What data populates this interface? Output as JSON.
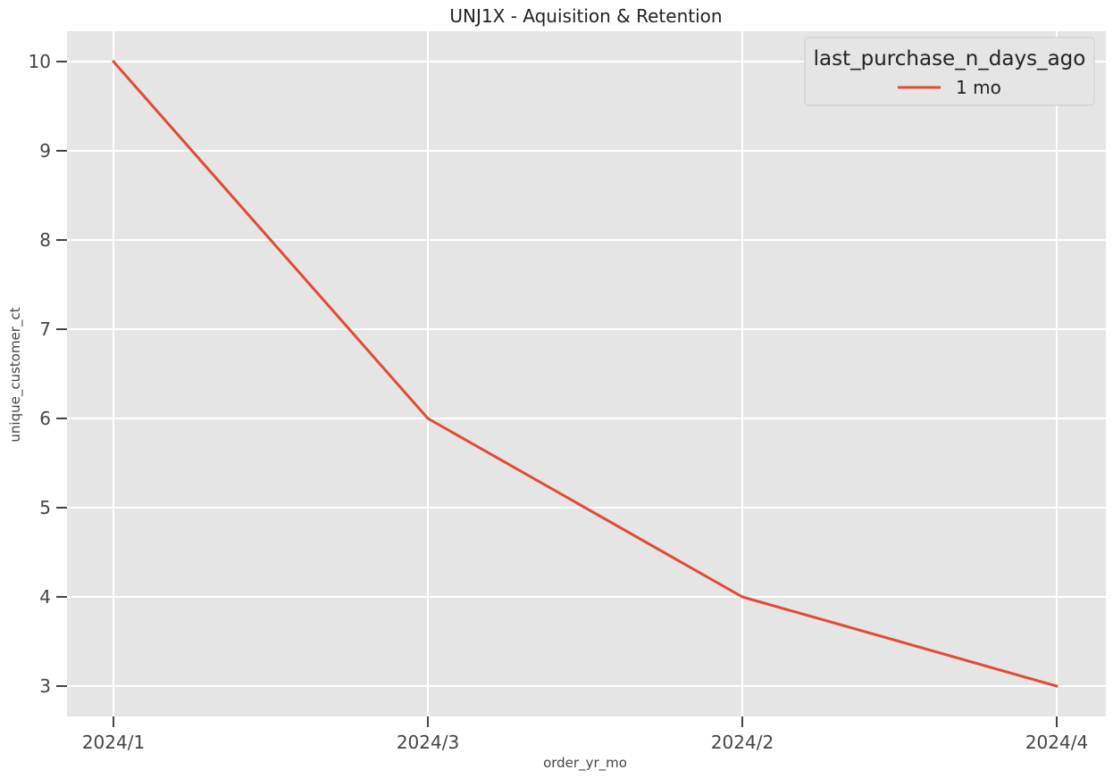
{
  "chart_data": {
    "type": "line",
    "title": "UNJ1X - Aquisition & Retention",
    "xlabel": "order_yr_mo",
    "ylabel": "unique_customer_ct",
    "categories": [
      "2024/1",
      "2024/3",
      "2024/2",
      "2024/4"
    ],
    "series": [
      {
        "name": "1 mo",
        "values": [
          10,
          6,
          4,
          3
        ],
        "color": "#E24A33"
      }
    ],
    "ylim": [
      2.65,
      10.35
    ],
    "yticks": [
      3,
      4,
      5,
      6,
      7,
      8,
      9,
      10
    ],
    "legend": {
      "title": "last_purchase_n_days_ago",
      "placement": "top-right"
    },
    "grid": true,
    "colors": {
      "plot_background": "#E5E5E5",
      "grid": "#FFFFFF",
      "text": "#444444"
    }
  }
}
